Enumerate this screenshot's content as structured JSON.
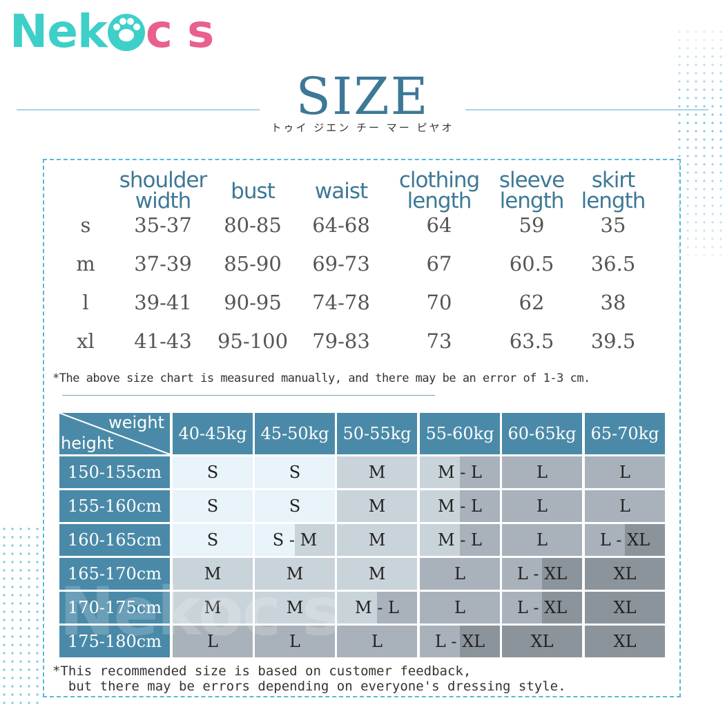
{
  "brand": {
    "logo_left": "Nek",
    "logo_right": "c s",
    "colors": {
      "teal": "#3ecfc9",
      "pink": "#e9608f",
      "accent": "#3d7896",
      "header_bg": "#4a8aa8"
    }
  },
  "header": {
    "title": "SIZE",
    "subtitle": "トゥイ ジエン チー マー ピヤオ"
  },
  "measurements": {
    "columns": [
      {
        "lines": [
          "shoulder",
          "width"
        ]
      },
      {
        "lines": [
          "bust"
        ]
      },
      {
        "lines": [
          "waist"
        ]
      },
      {
        "lines": [
          "clothing",
          "length"
        ]
      },
      {
        "lines": [
          "sleeve",
          "length"
        ]
      },
      {
        "lines": [
          "skirt",
          "length"
        ]
      }
    ],
    "rows": [
      {
        "size": "s",
        "values": [
          "35-37",
          "80-85",
          "64-68",
          "64",
          "59",
          "35"
        ]
      },
      {
        "size": "m",
        "values": [
          "37-39",
          "85-90",
          "69-73",
          "67",
          "60.5",
          "36.5"
        ]
      },
      {
        "size": "l",
        "values": [
          "39-41",
          "90-95",
          "74-78",
          "70",
          "62",
          "38"
        ]
      },
      {
        "size": "xl",
        "values": [
          "41-43",
          "95-100",
          "79-83",
          "73",
          "63.5",
          "39.5"
        ]
      }
    ],
    "note": "*The above size chart is measured manually, and there may be an error of 1-3 cm."
  },
  "recommendation": {
    "corner_weight": "weight",
    "corner_height": "height",
    "weights": [
      "40-45kg",
      "45-50kg",
      "50-55kg",
      "55-60kg",
      "60-65kg",
      "65-70kg"
    ],
    "heights": [
      "150-155cm",
      "155-160cm",
      "160-165cm",
      "165-170cm",
      "170-175cm",
      "175-180cm"
    ],
    "cells": [
      [
        "S",
        "S",
        "M",
        "M - L",
        "L",
        "L"
      ],
      [
        "S",
        "S",
        "M",
        "M - L",
        "L",
        "L"
      ],
      [
        "S",
        "S - M",
        "M",
        "M - L",
        "L",
        "L - XL"
      ],
      [
        "M",
        "M",
        "M",
        "L",
        "L - XL",
        "XL"
      ],
      [
        "M",
        "M",
        "M - L",
        "L",
        "L - XL",
        "XL"
      ],
      [
        "L",
        "L",
        "L",
        "L - XL",
        "XL",
        "XL"
      ]
    ],
    "size_colors": {
      "S": "#e8f3fa",
      "M": "#c9d3da",
      "L": "#a9b2ba",
      "XL": "#8c949b"
    },
    "note_line1": "*This recommended size is based on customer feedback,",
    "note_line2": "  but there may be errors depending on everyone's dressing style."
  }
}
